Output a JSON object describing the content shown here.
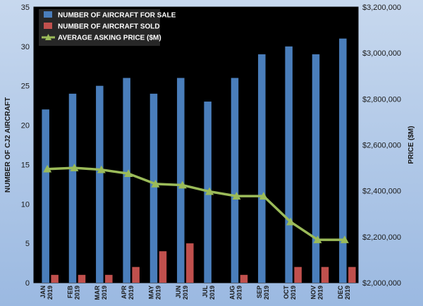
{
  "chart_data": {
    "type": "bar",
    "categories": [
      [
        "JAN",
        "2019"
      ],
      [
        "FEB",
        "2019"
      ],
      [
        "MAR",
        "2019"
      ],
      [
        "APR",
        "2019"
      ],
      [
        "MAY",
        "2019"
      ],
      [
        "JUN",
        "2019"
      ],
      [
        "JUL",
        "2019"
      ],
      [
        "AUG",
        "2019"
      ],
      [
        "SEP",
        "2019"
      ],
      [
        "OCT",
        "2019"
      ],
      [
        "NOV",
        "2019"
      ],
      [
        "DEC",
        "2019"
      ]
    ],
    "series": [
      {
        "name": "NUMBER OF AIRCRAFT FOR SALE",
        "type": "bar",
        "axis": "left",
        "color": "#4a7ebb",
        "values": [
          22,
          24,
          25,
          26,
          24,
          26,
          23,
          26,
          29,
          30,
          29,
          31
        ]
      },
      {
        "name": "NUMBER OF AIRCRAFT SOLD",
        "type": "bar",
        "axis": "left",
        "color": "#c0504d",
        "values": [
          1,
          1,
          1,
          2,
          4,
          5,
          0,
          1,
          0,
          2,
          2,
          2
        ]
      },
      {
        "name": "AVERAGE ASKING PRICE ($M)",
        "type": "line",
        "axis": "right",
        "color": "#9bbb59",
        "values": [
          2495000,
          2500000,
          2492000,
          2475000,
          2430000,
          2425000,
          2397000,
          2377000,
          2377000,
          2265000,
          2187000,
          2187000
        ]
      }
    ],
    "ylabel": "NUMBER OF CJ2 AIRCRAFT",
    "ylabel_right": "PRICE ($M)",
    "ylim": [
      0,
      35
    ],
    "yticks": [
      0,
      5,
      10,
      15,
      20,
      25,
      30,
      35
    ],
    "ylim_right": [
      2000000,
      3200000
    ],
    "yticks_right": [
      "$2,000,000",
      "$2,200,000",
      "$2,400,000",
      "$2,600,000",
      "$2,800,000",
      "$3,000,000",
      "$3,200,000"
    ],
    "yticks_right_values": [
      2000000,
      2200000,
      2400000,
      2600000,
      2800000,
      3000000,
      3200000
    ],
    "legend_position": "top-left",
    "grid": false,
    "plot_background": "#000000"
  }
}
